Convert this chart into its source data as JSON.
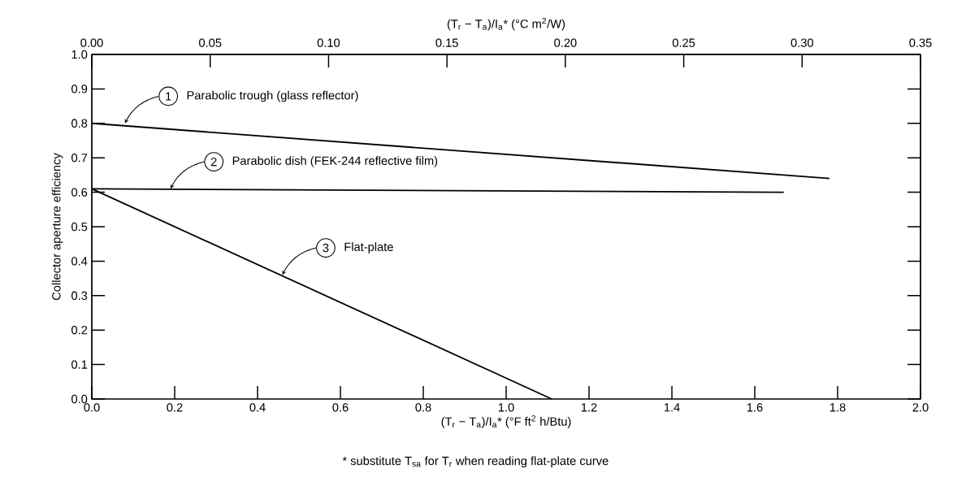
{
  "chart_data": {
    "type": "line",
    "xlabel": "(T$_{r}$ − T$_{a}$)/I$_{a}$* (°F ft$^{2}$ h/Btu)",
    "x2label": "(T$_{r}$ − T$_{a}$)/I$_{a}$* (°C m$^{2}$/W)",
    "ylabel": "Collector aperture efficiency",
    "xlim": [
      0,
      2.0
    ],
    "xticks": [
      {
        "value": 0,
        "label": "0.0"
      },
      0.2,
      0.4,
      0.6,
      0.8,
      {
        "value": 1,
        "label": "1.0"
      },
      1.2,
      1.4,
      1.6,
      1.8,
      {
        "value": 2,
        "label": "2.0"
      }
    ],
    "x2lim": [
      0,
      0.35
    ],
    "x2ticks": [
      {
        "value": 0,
        "label": "0.00"
      },
      0.05,
      {
        "value": 0.1,
        "label": "0.10"
      },
      0.15,
      {
        "value": 0.2,
        "label": "0.20"
      },
      0.25,
      {
        "value": 0.3,
        "label": "0.30"
      },
      0.35
    ],
    "ylim": [
      0,
      1.0
    ],
    "yticks": [
      {
        "value": 0,
        "label": "0.0"
      },
      0.1,
      0.2,
      0.3,
      0.4,
      0.5,
      0.6,
      0.7,
      0.8,
      0.9,
      {
        "value": 1,
        "label": "1.0"
      }
    ],
    "marker": "none",
    "line_style": "solid",
    "legend": "top left",
    "series": [
      {
        "name": "Parabolic trough (glass reflector)",
        "color": "#000000",
        "x": [
          0,
          1.78
        ],
        "values": [
          0.8,
          0.64
        ]
      },
      {
        "name": "Parabolic dish (FEK-244 reflective film)",
        "color": "#000000",
        "x": [
          0,
          1.67
        ],
        "values": [
          0.61,
          0.6
        ]
      },
      {
        "name": "Flat-plate",
        "color": "#000000",
        "x": [
          0,
          1.11
        ],
        "values": [
          0.61,
          0
        ]
      }
    ],
    "annotations": [
      {
        "text": "1",
        "x": 0.08,
        "y": 0.8
      },
      {
        "text": "2",
        "x": 0.19,
        "y": 0.61
      },
      {
        "text": "3",
        "x": 0.46,
        "y": 0.36
      },
      "* substitute T$_{sa}$ for T$_{r}$ when reading flat-plate curve"
    ]
  }
}
